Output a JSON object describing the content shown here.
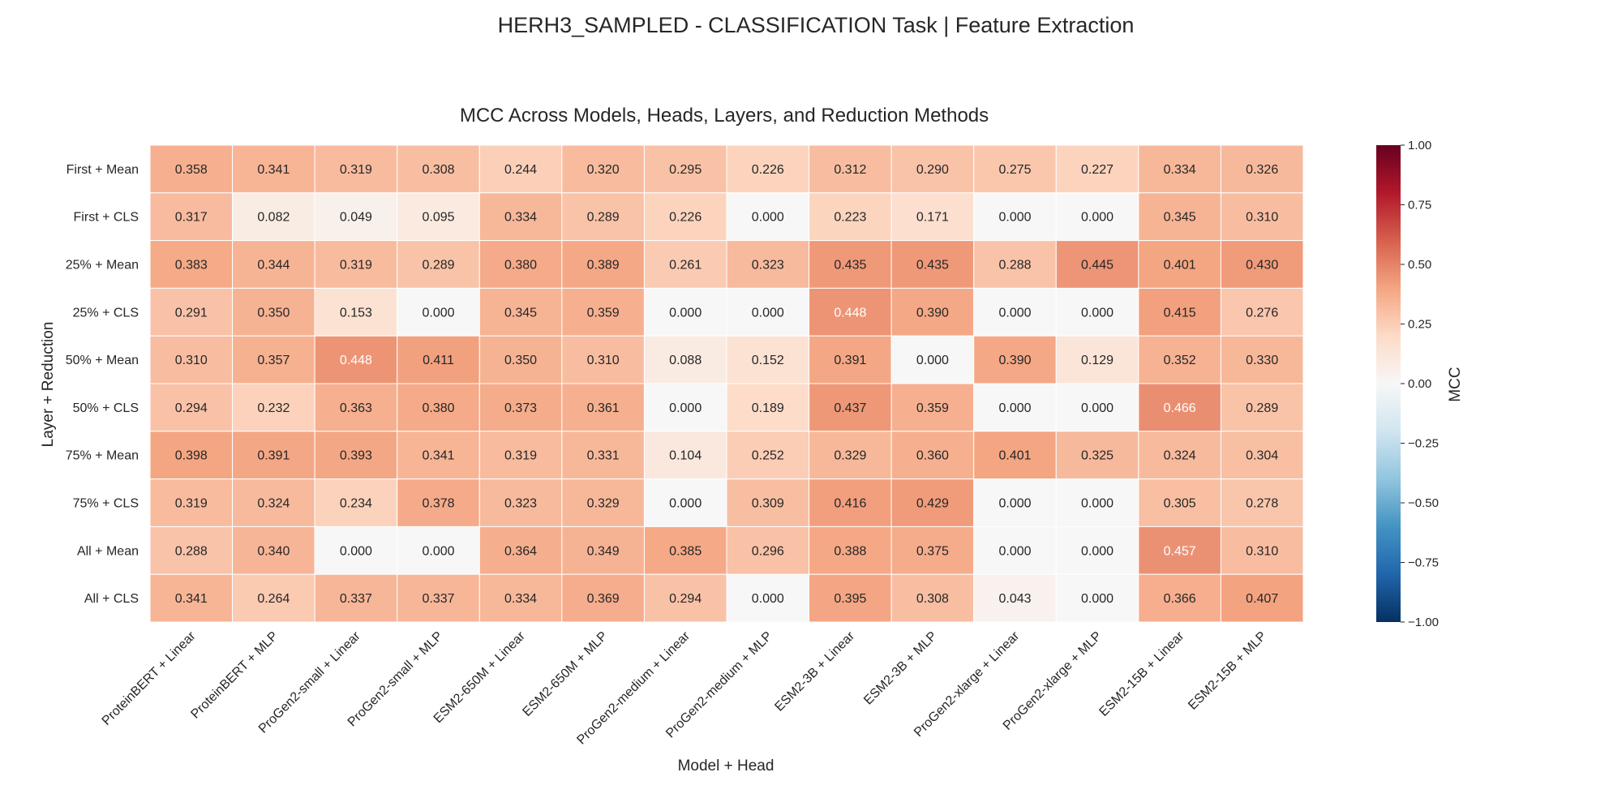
{
  "chart_data": {
    "type": "heatmap",
    "suptitle": "HERH3_SAMPLED - CLASSIFICATION Task | Feature Extraction",
    "title": "MCC Across Models, Heads, Layers, and Reduction Methods",
    "xlabel": "Model + Head",
    "ylabel": "Layer + Reduction",
    "colorbar_label": "MCC",
    "colorbar_ticks": [
      "1.00",
      "0.75",
      "0.50",
      "0.25",
      "0.00",
      "−0.25",
      "−0.50",
      "−0.75",
      "−1.00"
    ],
    "vmin": -1.0,
    "vmax": 1.0,
    "colormap": "RdBu_r",
    "x_categories": [
      "ProteinBERT + Linear",
      "ProteinBERT + MLP",
      "ProGen2-small + Linear",
      "ProGen2-small + MLP",
      "ESM2-650M + Linear",
      "ESM2-650M + MLP",
      "ProGen2-medium + Linear",
      "ProGen2-medium + MLP",
      "ESM2-3B + Linear",
      "ESM2-3B + MLP",
      "ProGen2-xlarge + Linear",
      "ProGen2-xlarge + MLP",
      "ESM2-15B + Linear",
      "ESM2-15B + MLP"
    ],
    "y_categories": [
      "First + Mean",
      "First + CLS",
      "25% + Mean",
      "25% + CLS",
      "50% + Mean",
      "50% + CLS",
      "75% + Mean",
      "75% + CLS",
      "All + Mean",
      "All + CLS"
    ],
    "values": [
      [
        0.358,
        0.341,
        0.319,
        0.308,
        0.244,
        0.32,
        0.295,
        0.226,
        0.312,
        0.29,
        0.275,
        0.227,
        0.334,
        0.326
      ],
      [
        0.317,
        0.082,
        0.049,
        0.095,
        0.334,
        0.289,
        0.226,
        0.0,
        0.223,
        0.171,
        0.0,
        0.0,
        0.345,
        0.31
      ],
      [
        0.383,
        0.344,
        0.319,
        0.289,
        0.38,
        0.389,
        0.261,
        0.323,
        0.435,
        0.435,
        0.288,
        0.445,
        0.401,
        0.43
      ],
      [
        0.291,
        0.35,
        0.153,
        0.0,
        0.345,
        0.359,
        0.0,
        0.0,
        0.448,
        0.39,
        0.0,
        0.0,
        0.415,
        0.276
      ],
      [
        0.31,
        0.357,
        0.448,
        0.411,
        0.35,
        0.31,
        0.088,
        0.152,
        0.391,
        0.0,
        0.39,
        0.129,
        0.352,
        0.33
      ],
      [
        0.294,
        0.232,
        0.363,
        0.38,
        0.373,
        0.361,
        0.0,
        0.189,
        0.437,
        0.359,
        0.0,
        0.0,
        0.466,
        0.289
      ],
      [
        0.398,
        0.391,
        0.393,
        0.341,
        0.319,
        0.331,
        0.104,
        0.252,
        0.329,
        0.36,
        0.401,
        0.325,
        0.324,
        0.304
      ],
      [
        0.319,
        0.324,
        0.234,
        0.378,
        0.323,
        0.329,
        0.0,
        0.309,
        0.416,
        0.429,
        0.0,
        0.0,
        0.305,
        0.278
      ],
      [
        0.288,
        0.34,
        0.0,
        0.0,
        0.364,
        0.349,
        0.385,
        0.296,
        0.388,
        0.375,
        0.0,
        0.0,
        0.457,
        0.31
      ],
      [
        0.341,
        0.264,
        0.337,
        0.337,
        0.334,
        0.369,
        0.294,
        0.0,
        0.395,
        0.308,
        0.043,
        0.0,
        0.366,
        0.407
      ]
    ],
    "white_text_cells": [
      [
        3,
        8
      ],
      [
        4,
        2
      ],
      [
        5,
        12
      ],
      [
        8,
        12
      ]
    ]
  }
}
